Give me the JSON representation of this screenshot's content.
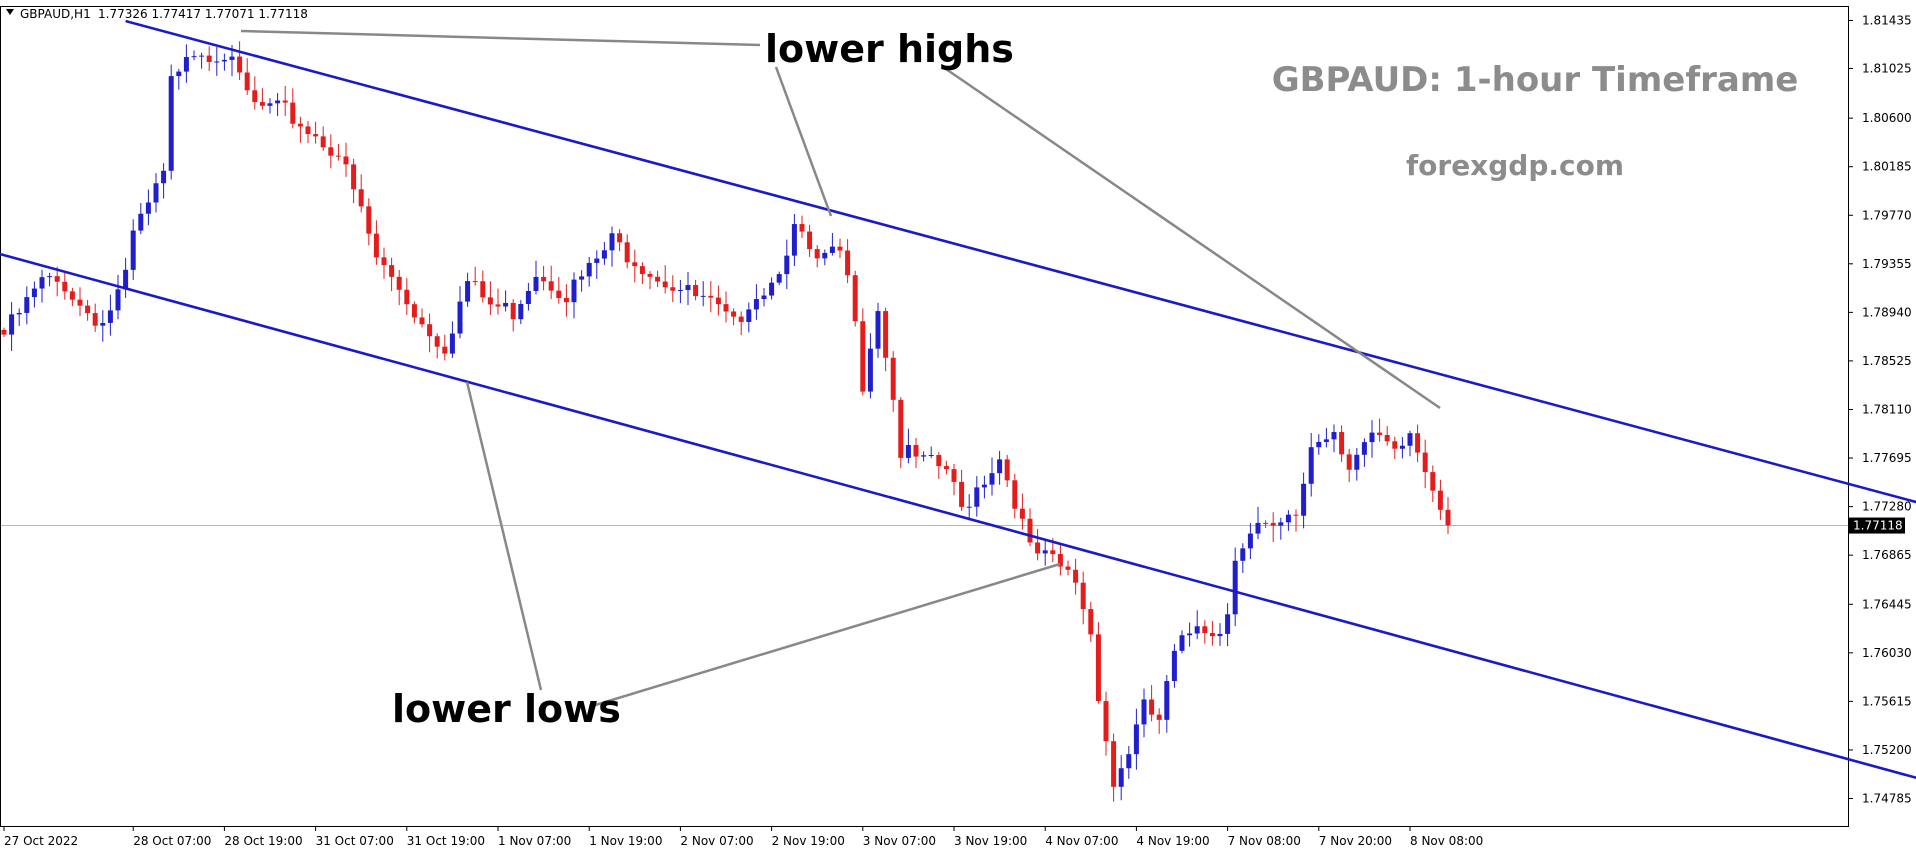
{
  "header": {
    "symbol": "GBPAUD,H1",
    "ohlc": "1.77326 1.77417 1.77071 1.77118"
  },
  "watermark": {
    "title": "GBPAUD: 1-hour Timeframe",
    "site": "forexgdp.com"
  },
  "annotations": {
    "lower_highs": "lower highs",
    "lower_lows": "lower lows"
  },
  "colors": {
    "bull": "#1f1fcc",
    "bear": "#e41c1c",
    "channel": "#1a1acc",
    "pointer": "#888888",
    "watermark": "#8c8c8c",
    "current_price_line": "#a8b8c8"
  },
  "chart_data": {
    "type": "candlestick",
    "symbol": "GBPAUD",
    "timeframe": "H1",
    "last_price": "1.77118",
    "ylim": [
      1.7455,
      1.8155
    ],
    "y_ticks": [
      "1.81435",
      "1.81025",
      "1.80600",
      "1.80185",
      "1.79770",
      "1.79355",
      "1.78940",
      "1.78525",
      "1.78110",
      "1.77695",
      "1.77280",
      "1.76865",
      "1.76445",
      "1.76030",
      "1.75615",
      "1.75200",
      "1.74785"
    ],
    "x_ticks": [
      {
        "label": "27 Oct 2022",
        "index": 0
      },
      {
        "label": "28 Oct 07:00",
        "index": 17
      },
      {
        "label": "28 Oct 19:00",
        "index": 29
      },
      {
        "label": "31 Oct 07:00",
        "index": 41
      },
      {
        "label": "31 Oct 19:00",
        "index": 53
      },
      {
        "label": "1 Nov 07:00",
        "index": 65
      },
      {
        "label": "1 Nov 19:00",
        "index": 77
      },
      {
        "label": "2 Nov 07:00",
        "index": 89
      },
      {
        "label": "2 Nov 19:00",
        "index": 101
      },
      {
        "label": "3 Nov 07:00",
        "index": 113
      },
      {
        "label": "3 Nov 19:00",
        "index": 125
      },
      {
        "label": "4 Nov 07:00",
        "index": 137
      },
      {
        "label": "4 Nov 19:00",
        "index": 149
      },
      {
        "label": "7 Nov 08:00",
        "index": 161
      },
      {
        "label": "7 Nov 20:00",
        "index": 173
      },
      {
        "label": "8 Nov 08:00",
        "index": 185
      }
    ],
    "waypoints": [
      [
        0,
        1.7875
      ],
      [
        5,
        1.792
      ],
      [
        8,
        1.7918
      ],
      [
        10,
        1.79
      ],
      [
        13,
        1.7885
      ],
      [
        16,
        1.7922
      ],
      [
        17,
        1.796
      ],
      [
        21,
        1.801
      ],
      [
        22,
        1.809
      ],
      [
        24,
        1.812
      ],
      [
        29,
        1.8115
      ],
      [
        33,
        1.807
      ],
      [
        37,
        1.8065
      ],
      [
        40,
        1.805
      ],
      [
        44,
        1.803
      ],
      [
        47,
        1.798
      ],
      [
        49,
        1.794
      ],
      [
        52,
        1.7915
      ],
      [
        55,
        1.7885
      ],
      [
        58,
        1.7865
      ],
      [
        61,
        1.792
      ],
      [
        64,
        1.79
      ],
      [
        67,
        1.7895
      ],
      [
        70,
        1.793
      ],
      [
        74,
        1.791
      ],
      [
        77,
        1.793
      ],
      [
        80,
        1.7955
      ],
      [
        83,
        1.794
      ],
      [
        86,
        1.7925
      ],
      [
        90,
        1.791
      ],
      [
        93,
        1.79
      ],
      [
        96,
        1.7882
      ],
      [
        98,
        1.7905
      ],
      [
        101,
        1.792
      ],
      [
        104,
        1.7965
      ],
      [
        107,
        1.7935
      ],
      [
        110,
        1.7945
      ],
      [
        112,
        1.7895
      ],
      [
        113,
        1.7835
      ],
      [
        115,
        1.79
      ],
      [
        117,
        1.782
      ],
      [
        118,
        1.7775
      ],
      [
        121,
        1.7765
      ],
      [
        124,
        1.776
      ],
      [
        126,
        1.7725
      ],
      [
        128,
        1.7745
      ],
      [
        131,
        1.777
      ],
      [
        133,
        1.7735
      ],
      [
        135,
        1.769
      ],
      [
        138,
        1.768
      ],
      [
        141,
        1.7665
      ],
      [
        143,
        1.762
      ],
      [
        144,
        1.757
      ],
      [
        146,
        1.749
      ],
      [
        148,
        1.752
      ],
      [
        150,
        1.7555
      ],
      [
        152,
        1.7545
      ],
      [
        154,
        1.76
      ],
      [
        157,
        1.763
      ],
      [
        160,
        1.762
      ],
      [
        161,
        1.764
      ],
      [
        162,
        1.769
      ],
      [
        165,
        1.771
      ],
      [
        167,
        1.7705
      ],
      [
        170,
        1.772
      ],
      [
        172,
        1.778
      ],
      [
        175,
        1.7795
      ],
      [
        177,
        1.7765
      ],
      [
        179,
        1.778
      ],
      [
        181,
        1.7785
      ],
      [
        183,
        1.777
      ],
      [
        185,
        1.779
      ],
      [
        187,
        1.776
      ],
      [
        189,
        1.7733
      ],
      [
        190,
        1.7712
      ]
    ],
    "channel": {
      "upper": {
        "from": [
          16,
          1.8143
        ],
        "to": [
          263,
          1.7712
        ]
      },
      "lower": {
        "from": [
          -4,
          1.795
        ],
        "to": [
          263,
          1.7476
        ]
      }
    }
  }
}
